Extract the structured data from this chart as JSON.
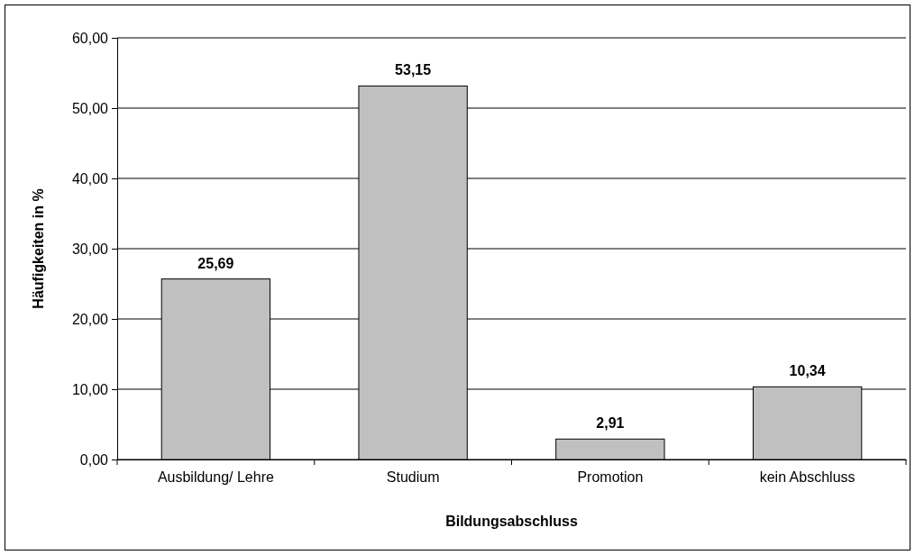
{
  "chart_data": {
    "type": "bar",
    "xlabel": "Bildungsabschluss",
    "ylabel": "Häufigkeiten in %",
    "categories": [
      "Ausbildung/ Lehre",
      "Studium",
      "Promotion",
      "kein Abschluss"
    ],
    "values": [
      25.69,
      53.15,
      2.91,
      10.34
    ],
    "value_labels": [
      "25,69",
      "53,15",
      "2,91",
      "10,34"
    ],
    "color": "#c0c0c0",
    "ylim": [
      0,
      60
    ],
    "yticks": [
      {
        "value": 0,
        "label": "0,00"
      },
      {
        "value": 10,
        "label": "10,00"
      },
      {
        "value": 20,
        "label": "20,00"
      },
      {
        "value": 30,
        "label": "30,00"
      },
      {
        "value": 40,
        "label": "40,00"
      },
      {
        "value": 50,
        "label": "50,00"
      },
      {
        "value": 60,
        "label": "60,00"
      }
    ],
    "grid": "y"
  }
}
